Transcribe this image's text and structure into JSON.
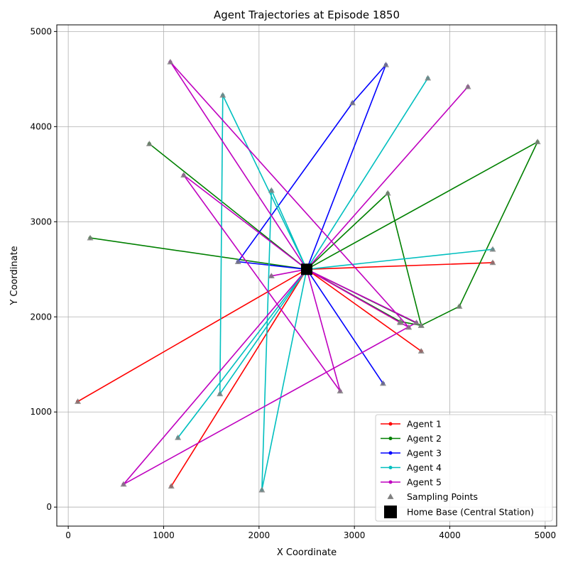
{
  "chart_data": {
    "type": "line",
    "title": "Agent Trajectories at Episode 1850",
    "xlabel": "X Coordinate",
    "ylabel": "Y Coordinate",
    "xlim": [
      -120,
      5120
    ],
    "ylim": [
      -200,
      5070
    ],
    "xticks": [
      0,
      1000,
      2000,
      3000,
      4000,
      5000
    ],
    "yticks": [
      0,
      1000,
      2000,
      3000,
      4000,
      5000
    ],
    "xtick_labels": [
      "0",
      "1000",
      "2000",
      "3000",
      "4000",
      "5000"
    ],
    "ytick_labels": [
      "0",
      "1000",
      "2000",
      "3000",
      "4000",
      "5000"
    ],
    "grid": true,
    "legend_position": "lower-right",
    "home_base": {
      "name": "Home Base (Central Station)",
      "x": 2500,
      "y": 2500,
      "color": "#000000"
    },
    "sampling_label": "Sampling Points",
    "sampling_color": "#808080",
    "series": [
      {
        "name": "Agent 1",
        "color": "#ff0000",
        "x": [
          2500,
          4450,
          2500,
          100,
          2500,
          1080,
          2500,
          3700,
          2500,
          3480,
          2500
        ],
        "y": [
          2500,
          2570,
          2500,
          1110,
          2500,
          220,
          2500,
          1640,
          2500,
          1940,
          2500
        ]
      },
      {
        "name": "Agent 2",
        "color": "#008000",
        "x": [
          2500,
          4920,
          4100,
          3700,
          3350,
          2500,
          850,
          2500,
          230,
          2500,
          3700,
          3480,
          2500
        ],
        "y": [
          2500,
          3840,
          2110,
          1910,
          3300,
          2500,
          3820,
          2500,
          2830,
          2500,
          1910,
          1950,
          2500
        ]
      },
      {
        "name": "Agent 3",
        "color": "#0000ff",
        "x": [
          2500,
          3300,
          2500,
          1780,
          2980,
          3330,
          2500
        ],
        "y": [
          2500,
          1300,
          2500,
          2580,
          4250,
          4650,
          2500
        ]
      },
      {
        "name": "Agent 4",
        "color": "#00bfbf",
        "x": [
          2500,
          1620,
          1590,
          2500,
          1150,
          2500,
          3770,
          2500,
          4450,
          2500,
          2130,
          2030,
          2500
        ],
        "y": [
          2500,
          4330,
          1190,
          2500,
          730,
          2500,
          4510,
          2500,
          2710,
          2500,
          3330,
          180,
          2500
        ]
      },
      {
        "name": "Agent 5",
        "color": "#bf00bf",
        "x": [
          2500,
          4190,
          2500,
          2130,
          2500,
          580,
          3650,
          2500,
          1070,
          3570,
          2500,
          1210,
          2850,
          2500
        ],
        "y": [
          2500,
          4420,
          2500,
          2430,
          2500,
          240,
          1940,
          2500,
          4680,
          1890,
          2500,
          3490,
          1220,
          2500
        ]
      }
    ]
  }
}
